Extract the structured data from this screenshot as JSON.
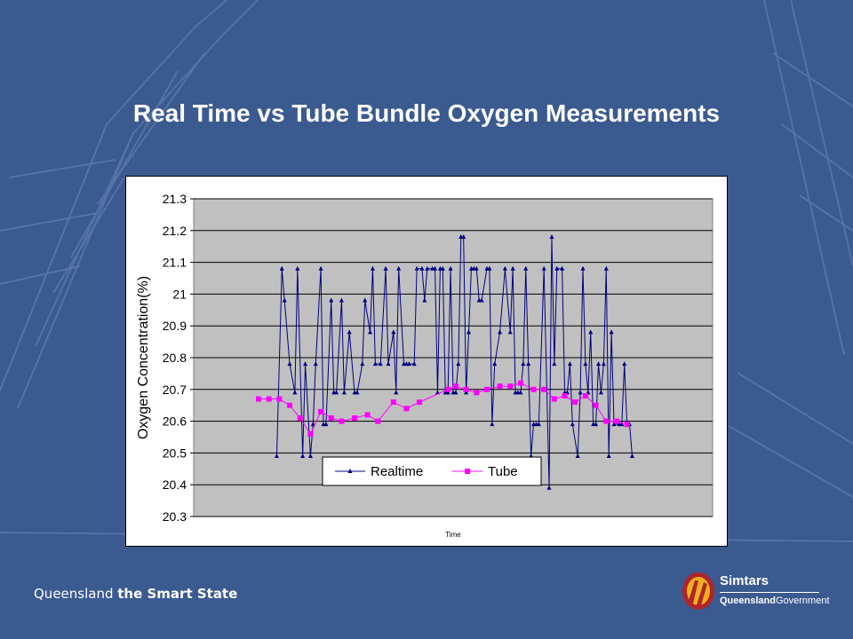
{
  "slide": {
    "title": "Real Time vs Tube Bundle Oxygen Measurements",
    "footer_tagline_plain": "Queensland ",
    "footer_tagline_bold": "the Smart State",
    "logo_brand": "Simtars",
    "logo_gov_bold": "Queensland",
    "logo_gov_plain": "Government",
    "background_color": "#3a5a90"
  },
  "chart_data": {
    "type": "line",
    "title": "",
    "xlabel": "Time",
    "ylabel": "Oxygen Concentration(%)",
    "ylim": [
      20.3,
      21.3
    ],
    "yticks": [
      21.3,
      21.2,
      21.1,
      21,
      20.9,
      20.8,
      20.7,
      20.6,
      20.5,
      20.4,
      20.3
    ],
    "grid": true,
    "legend_position": "bottom-center",
    "plot_background": "#c0c0c0",
    "x_tick_labels": [],
    "series": [
      {
        "name": "Realtime",
        "color": "#000080",
        "marker": "triangle",
        "x": [
          0.16,
          0.17,
          0.175,
          0.185,
          0.195,
          0.2,
          0.21,
          0.215,
          0.225,
          0.23,
          0.235,
          0.245,
          0.25,
          0.255,
          0.265,
          0.27,
          0.275,
          0.285,
          0.29,
          0.3,
          0.31,
          0.315,
          0.325,
          0.33,
          0.34,
          0.345,
          0.35,
          0.36,
          0.37,
          0.375,
          0.385,
          0.39,
          0.395,
          0.405,
          0.41,
          0.415,
          0.425,
          0.43,
          0.44,
          0.445,
          0.45,
          0.46,
          0.465,
          0.47,
          0.475,
          0.48,
          0.485,
          0.49,
          0.495,
          0.5,
          0.505,
          0.51,
          0.515,
          0.52,
          0.525,
          0.53,
          0.535,
          0.54,
          0.545,
          0.55,
          0.555,
          0.565,
          0.57,
          0.575,
          0.58,
          0.59,
          0.6,
          0.61,
          0.615,
          0.62,
          0.625,
          0.63,
          0.635,
          0.64,
          0.645,
          0.65,
          0.655,
          0.66,
          0.665,
          0.675,
          0.685,
          0.69,
          0.695,
          0.7,
          0.71,
          0.715,
          0.72,
          0.725,
          0.73,
          0.74,
          0.745,
          0.75,
          0.755,
          0.76,
          0.765,
          0.77,
          0.775,
          0.78,
          0.785,
          0.79,
          0.795,
          0.8,
          0.805,
          0.81,
          0.82,
          0.825,
          0.83,
          0.835,
          0.84,
          0.845
        ],
        "values": [
          20.49,
          21.08,
          20.98,
          20.78,
          20.69,
          21.08,
          20.49,
          20.78,
          20.49,
          20.59,
          20.78,
          21.08,
          20.59,
          20.59,
          20.98,
          20.69,
          20.69,
          20.98,
          20.69,
          20.88,
          20.69,
          20.69,
          20.78,
          20.98,
          20.88,
          21.08,
          20.78,
          20.78,
          21.08,
          20.78,
          20.88,
          20.69,
          21.08,
          20.78,
          20.78,
          20.78,
          20.78,
          21.08,
          21.08,
          20.98,
          21.08,
          21.08,
          21.08,
          20.69,
          21.08,
          21.08,
          20.69,
          20.69,
          21.08,
          20.69,
          20.69,
          20.78,
          21.18,
          21.18,
          20.69,
          20.88,
          21.08,
          21.08,
          21.08,
          20.98,
          20.98,
          21.08,
          21.08,
          20.59,
          20.78,
          20.88,
          21.08,
          20.88,
          21.08,
          20.69,
          20.69,
          20.69,
          20.78,
          21.08,
          20.78,
          20.49,
          20.59,
          20.59,
          20.59,
          21.08,
          20.39,
          21.18,
          20.78,
          21.08,
          21.08,
          20.69,
          20.69,
          20.78,
          20.59,
          20.49,
          20.69,
          21.08,
          20.78,
          20.69,
          20.88,
          20.59,
          20.59,
          20.78,
          20.69,
          20.78,
          21.08,
          20.49,
          20.88,
          20.59,
          20.59,
          20.59,
          20.78,
          20.59,
          20.59,
          20.49
        ]
      },
      {
        "name": "Tube",
        "color": "#ff00ff",
        "marker": "square",
        "x": [
          0.125,
          0.145,
          0.165,
          0.185,
          0.205,
          0.225,
          0.245,
          0.265,
          0.285,
          0.31,
          0.335,
          0.355,
          0.385,
          0.41,
          0.435,
          0.49,
          0.505,
          0.525,
          0.545,
          0.565,
          0.59,
          0.61,
          0.63,
          0.655,
          0.675,
          0.695,
          0.715,
          0.735,
          0.755,
          0.775,
          0.795,
          0.815,
          0.835
        ],
        "values": [
          20.67,
          20.67,
          20.67,
          20.65,
          20.61,
          20.56,
          20.63,
          20.61,
          20.6,
          20.61,
          20.62,
          20.6,
          20.66,
          20.64,
          20.66,
          20.7,
          20.71,
          20.7,
          20.69,
          20.7,
          20.71,
          20.71,
          20.72,
          20.7,
          20.7,
          20.67,
          20.68,
          20.66,
          20.68,
          20.65,
          20.6,
          20.6,
          20.59
        ]
      }
    ]
  }
}
